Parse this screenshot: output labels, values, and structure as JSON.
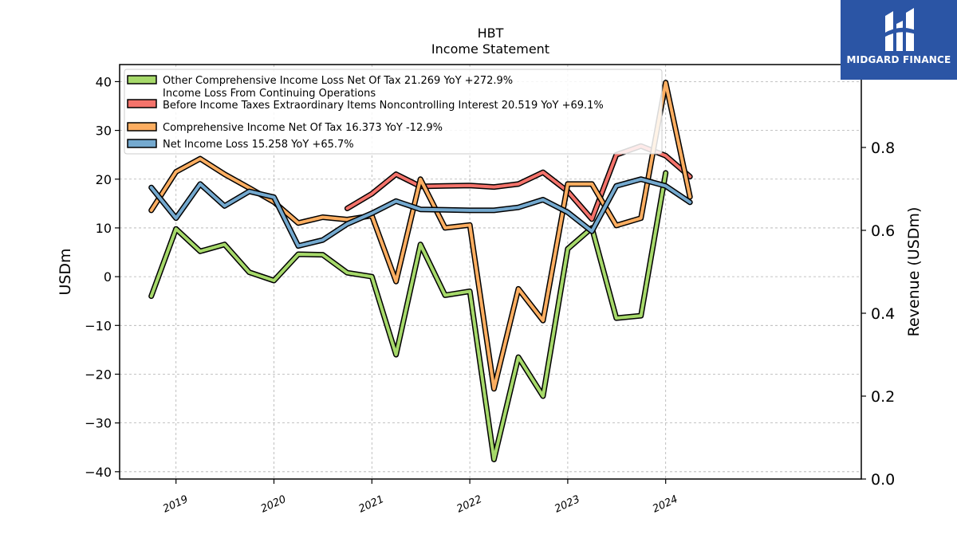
{
  "brand": {
    "name": "MIDGARD FINANCE",
    "bg_color": "#2b55a5"
  },
  "chart_data": {
    "type": "line",
    "title": "HBT",
    "subtitle": "Income Statement",
    "ylabel": "USDm",
    "ylabel_right": "Revenue (USDm)",
    "ylim": [
      -41.5,
      43.5
    ],
    "ylim_right": [
      0.0,
      1.0
    ],
    "yticks": [
      -40,
      -30,
      -20,
      -10,
      0,
      10,
      20,
      30,
      40
    ],
    "yticks_right": [
      0.0,
      0.2,
      0.4,
      0.6,
      0.8
    ],
    "xticks": [
      "2019",
      "2020",
      "2021",
      "2022",
      "2023",
      "2024"
    ],
    "grid": true,
    "legend_position": "top-left",
    "series": [
      {
        "name": "Other Comprehensive Income Loss Net Of Tax",
        "legend": "Other Comprehensive Income Loss Net Of Tax  21.269 YoY +272.9%",
        "color": "#a6d96a",
        "points": [
          [
            "2018-10-01",
            -4.0
          ],
          [
            "2019-01-01",
            9.8
          ],
          [
            "2019-04-01",
            5.2
          ],
          [
            "2019-07-01",
            6.6
          ],
          [
            "2019-10-01",
            0.9
          ],
          [
            "2020-01-01",
            -0.8
          ],
          [
            "2020-04-01",
            4.6
          ],
          [
            "2020-07-01",
            4.5
          ],
          [
            "2020-10-01",
            0.8
          ],
          [
            "2021-01-01",
            0.0
          ],
          [
            "2021-04-01",
            -16.0
          ],
          [
            "2021-07-01",
            6.6
          ],
          [
            "2021-10-01",
            -3.8
          ],
          [
            "2022-01-01",
            -3.0
          ],
          [
            "2022-04-01",
            -37.5
          ],
          [
            "2022-07-01",
            -16.5
          ],
          [
            "2022-10-01",
            -24.5
          ],
          [
            "2023-01-01",
            5.7
          ],
          [
            "2023-04-01",
            10.0
          ],
          [
            "2023-07-01",
            -8.5
          ],
          [
            "2023-10-01",
            -8.0
          ],
          [
            "2024-01-01",
            21.269
          ]
        ]
      },
      {
        "name": "Income Loss From Continuing Operations Before Income Taxes Extraordinary Items Noncontrolling Interest",
        "legend_lines": [
          "Income Loss From Continuing Operations",
          "Before Income Taxes Extraordinary Items Noncontrolling Interest  20.519 YoY +69.1%"
        ],
        "color": "#f4736b",
        "points": [
          [
            "2020-10-01",
            14.0
          ],
          [
            "2021-01-01",
            17.0
          ],
          [
            "2021-04-01",
            21.0
          ],
          [
            "2021-07-01",
            18.5
          ],
          [
            "2021-10-01",
            18.6
          ],
          [
            "2022-01-01",
            18.7
          ],
          [
            "2022-04-01",
            18.4
          ],
          [
            "2022-07-01",
            19.0
          ],
          [
            "2022-10-01",
            21.4
          ],
          [
            "2023-01-01",
            17.5
          ],
          [
            "2023-04-01",
            11.8
          ],
          [
            "2023-07-01",
            25.0
          ],
          [
            "2023-10-01",
            26.8
          ],
          [
            "2024-01-01",
            24.8
          ],
          [
            "2024-04-01",
            20.519
          ]
        ]
      },
      {
        "name": "Comprehensive Income Net Of Tax",
        "legend": "Comprehensive Income Net Of Tax  16.373 YoY -12.9%",
        "color": "#fdae61",
        "points": [
          [
            "2018-10-01",
            13.6
          ],
          [
            "2019-01-01",
            21.5
          ],
          [
            "2019-04-01",
            24.2
          ],
          [
            "2019-07-01",
            21.0
          ],
          [
            "2019-10-01",
            18.2
          ],
          [
            "2020-01-01",
            15.3
          ],
          [
            "2020-04-01",
            11.0
          ],
          [
            "2020-07-01",
            12.2
          ],
          [
            "2020-10-01",
            11.7
          ],
          [
            "2021-01-01",
            12.5
          ],
          [
            "2021-04-01",
            -1.0
          ],
          [
            "2021-07-01",
            20.0
          ],
          [
            "2021-10-01",
            10.0
          ],
          [
            "2022-01-01",
            10.6
          ],
          [
            "2022-04-01",
            -23.0
          ],
          [
            "2022-07-01",
            -2.5
          ],
          [
            "2022-10-01",
            -9.0
          ],
          [
            "2023-01-01",
            19.0
          ],
          [
            "2023-04-01",
            19.0
          ],
          [
            "2023-07-01",
            10.5
          ],
          [
            "2023-10-01",
            12.0
          ],
          [
            "2024-01-01",
            39.8
          ],
          [
            "2024-04-01",
            16.373
          ]
        ]
      },
      {
        "name": "Net Income Loss",
        "legend": "Net Income Loss  15.258 YoY +65.7%",
        "color": "#74a9cf",
        "points": [
          [
            "2018-10-01",
            18.3
          ],
          [
            "2019-01-01",
            12.0
          ],
          [
            "2019-04-01",
            19.0
          ],
          [
            "2019-07-01",
            14.5
          ],
          [
            "2019-10-01",
            17.5
          ],
          [
            "2020-01-01",
            16.3
          ],
          [
            "2020-04-01",
            6.3
          ],
          [
            "2020-07-01",
            7.5
          ],
          [
            "2020-10-01",
            10.8
          ],
          [
            "2021-01-01",
            13.0
          ],
          [
            "2021-04-01",
            15.5
          ],
          [
            "2021-07-01",
            13.8
          ],
          [
            "2021-10-01",
            13.7
          ],
          [
            "2022-01-01",
            13.6
          ],
          [
            "2022-04-01",
            13.6
          ],
          [
            "2022-07-01",
            14.2
          ],
          [
            "2022-10-01",
            15.8
          ],
          [
            "2023-01-01",
            13.2
          ],
          [
            "2023-04-01",
            9.3
          ],
          [
            "2023-07-01",
            18.6
          ],
          [
            "2023-10-01",
            20.0
          ],
          [
            "2024-01-01",
            18.6
          ],
          [
            "2024-04-01",
            15.258
          ]
        ]
      }
    ]
  }
}
